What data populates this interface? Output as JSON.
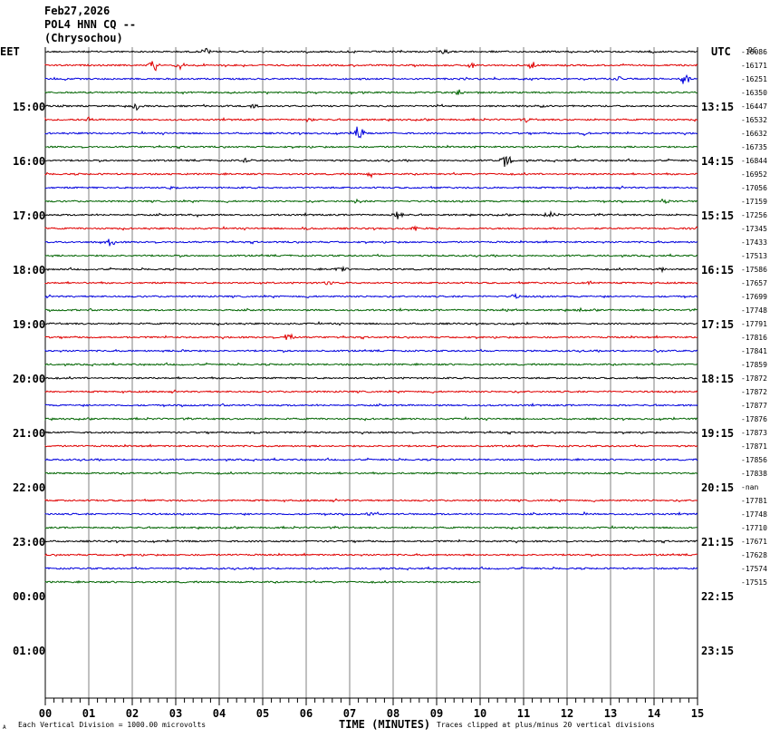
{
  "header": {
    "date": "Feb27,2026",
    "station": "POL4 HNN CQ --",
    "location": "(Chrysochou)"
  },
  "left_axis_label": "EET",
  "right_axis_label": "UTC",
  "offset_header": "DC",
  "footer": {
    "scale_note": "Each Vertical Division = 1000.00 microvolts",
    "xlabel": "TIME (MINUTES)",
    "clip_note": "Traces clipped at plus/minus 20 vertical divisions",
    "corner_mark": "A"
  },
  "colors": {
    "black": "#000000",
    "red": "#e00000",
    "blue": "#0000dd",
    "green": "#006400",
    "grid": "#808080"
  },
  "chart_data": {
    "type": "line",
    "title": "",
    "xlabel": "TIME (MINUTES)",
    "x_ticks": [
      "00",
      "01",
      "02",
      "03",
      "04",
      "05",
      "06",
      "07",
      "08",
      "09",
      "10",
      "11",
      "12",
      "13",
      "14",
      "15"
    ],
    "xlim": [
      0,
      15
    ],
    "left_hour_labels": [
      "15:00",
      "16:00",
      "17:00",
      "18:00",
      "19:00",
      "20:00",
      "21:00",
      "22:00",
      "23:00",
      "00:00",
      "01:00"
    ],
    "right_hour_labels": [
      "13:15",
      "14:15",
      "15:15",
      "16:15",
      "17:15",
      "18:15",
      "19:15",
      "20:15",
      "21:15",
      "22:15",
      "23:15"
    ],
    "trace_colors_cycle": [
      "black",
      "red",
      "blue",
      "green"
    ],
    "trace_offsets": [
      "-16086",
      "-16171",
      "-16251",
      "-16350",
      "-16447",
      "-16532",
      "-16632",
      "-16735",
      "-16844",
      "-16952",
      "-17056",
      "-17159",
      "-17256",
      "-17345",
      "-17433",
      "-17513",
      "-17586",
      "-17657",
      "-17699",
      "-17748",
      "-17791",
      "-17816",
      "-17841",
      "-17859",
      "-17872",
      "-17872",
      "-17877",
      "-17876",
      "-17873",
      "-17871",
      "-17856",
      "-17838",
      "-nan",
      "-17781",
      "-17748",
      "-17710",
      "-17671",
      "-17628",
      "-17574",
      "-17515"
    ],
    "empty_trace_index": 32,
    "last_trace_end_minute": 10,
    "events": [
      {
        "trace": 0,
        "minute": 3.7,
        "amp": 0.6
      },
      {
        "trace": 0,
        "minute": 9.2,
        "amp": 0.4
      },
      {
        "trace": 0,
        "minute": 14.0,
        "amp": 0.3
      },
      {
        "trace": 1,
        "minute": 2.5,
        "amp": 1.0
      },
      {
        "trace": 1,
        "minute": 3.1,
        "amp": 0.8
      },
      {
        "trace": 1,
        "minute": 9.8,
        "amp": 0.5
      },
      {
        "trace": 1,
        "minute": 11.2,
        "amp": 0.6
      },
      {
        "trace": 2,
        "minute": 14.7,
        "amp": 1.0
      },
      {
        "trace": 2,
        "minute": 13.2,
        "amp": 0.4
      },
      {
        "trace": 3,
        "minute": 9.5,
        "amp": 0.5
      },
      {
        "trace": 4,
        "minute": 2.1,
        "amp": 0.6
      },
      {
        "trace": 4,
        "minute": 4.8,
        "amp": 0.5
      },
      {
        "trace": 4,
        "minute": 11.4,
        "amp": 0.4
      },
      {
        "trace": 5,
        "minute": 1.0,
        "amp": 0.5
      },
      {
        "trace": 5,
        "minute": 6.1,
        "amp": 0.4
      },
      {
        "trace": 5,
        "minute": 11.1,
        "amp": 0.4
      },
      {
        "trace": 6,
        "minute": 7.2,
        "amp": 1.3
      },
      {
        "trace": 6,
        "minute": 12.4,
        "amp": 0.3
      },
      {
        "trace": 7,
        "minute": 9.8,
        "amp": 0.3
      },
      {
        "trace": 8,
        "minute": 10.6,
        "amp": 1.2
      },
      {
        "trace": 8,
        "minute": 4.6,
        "amp": 0.4
      },
      {
        "trace": 9,
        "minute": 7.5,
        "amp": 0.4
      },
      {
        "trace": 10,
        "minute": 2.9,
        "amp": 0.3
      },
      {
        "trace": 11,
        "minute": 7.2,
        "amp": 0.4
      },
      {
        "trace": 11,
        "minute": 14.3,
        "amp": 0.3
      },
      {
        "trace": 12,
        "minute": 8.1,
        "amp": 0.9
      },
      {
        "trace": 12,
        "minute": 11.6,
        "amp": 0.5
      },
      {
        "trace": 12,
        "minute": 3.5,
        "amp": 0.3
      },
      {
        "trace": 13,
        "minute": 8.5,
        "amp": 0.4
      },
      {
        "trace": 13,
        "minute": 6.0,
        "amp": 0.3
      },
      {
        "trace": 14,
        "minute": 1.5,
        "amp": 0.7
      },
      {
        "trace": 16,
        "minute": 6.8,
        "amp": 0.4
      },
      {
        "trace": 16,
        "minute": 14.2,
        "amp": 0.3
      },
      {
        "trace": 17,
        "minute": 6.5,
        "amp": 0.4
      },
      {
        "trace": 17,
        "minute": 12.5,
        "amp": 0.3
      },
      {
        "trace": 18,
        "minute": 10.8,
        "amp": 0.5
      },
      {
        "trace": 19,
        "minute": 10.6,
        "amp": 0.3
      },
      {
        "trace": 19,
        "minute": 12.3,
        "amp": 0.3
      },
      {
        "trace": 21,
        "minute": 5.6,
        "amp": 0.8
      },
      {
        "trace": 22,
        "minute": 3.2,
        "amp": 0.3
      },
      {
        "trace": 22,
        "minute": 14.1,
        "amp": 0.3
      },
      {
        "trace": 28,
        "minute": 4.8,
        "amp": 0.3
      },
      {
        "trace": 34,
        "minute": 7.5,
        "amp": 0.4
      },
      {
        "trace": 34,
        "minute": 12.4,
        "amp": 0.3
      }
    ]
  }
}
